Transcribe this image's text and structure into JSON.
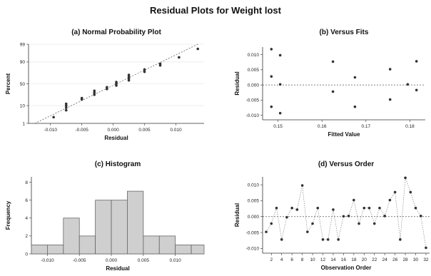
{
  "figure_title": "Residual Plots for Weight lost",
  "chart_data": [
    {
      "id": "a",
      "type": "scatter",
      "title": "(a) Normal Probability Plot",
      "xlabel": "Residual",
      "ylabel": "Percent",
      "x_ticks": [
        "-0.010",
        "-0.005",
        "0.000",
        "0.005",
        "0.010"
      ],
      "x_tick_values": [
        -0.01,
        -0.005,
        0.0,
        0.005,
        0.01
      ],
      "y_ticks": [
        "1",
        "10",
        "50",
        "90",
        "99"
      ],
      "y_tick_values": [
        1,
        10,
        50,
        90,
        99
      ],
      "xlim": [
        -0.0135,
        0.0145
      ],
      "ylim": [
        1,
        99
      ],
      "scale_y": "normal-probability",
      "reference_line": [
        [
          -0.0125,
          1
        ],
        [
          0.0135,
          99
        ]
      ],
      "points": [
        [
          -0.0095,
          2.5
        ],
        [
          -0.0075,
          6
        ],
        [
          -0.0075,
          8
        ],
        [
          -0.0075,
          10
        ],
        [
          -0.0075,
          12
        ],
        [
          -0.005,
          18
        ],
        [
          -0.005,
          20
        ],
        [
          -0.003,
          26
        ],
        [
          -0.003,
          30
        ],
        [
          -0.003,
          34
        ],
        [
          -0.001,
          38
        ],
        [
          -0.001,
          42
        ],
        [
          0.0005,
          46
        ],
        [
          0.0005,
          50
        ],
        [
          0.0005,
          54
        ],
        [
          0.0025,
          58
        ],
        [
          0.0025,
          62
        ],
        [
          0.0025,
          66
        ],
        [
          0.0025,
          70
        ],
        [
          0.005,
          76
        ],
        [
          0.005,
          80
        ],
        [
          0.0075,
          86
        ],
        [
          0.0075,
          88
        ],
        [
          0.0105,
          94
        ],
        [
          0.0135,
          98
        ]
      ]
    },
    {
      "id": "b",
      "type": "scatter",
      "title": "(b) Versus Fits",
      "xlabel": "Fitted Value",
      "ylabel": "Residual",
      "x_ticks": [
        "0.15",
        "0.16",
        "0.17",
        "0.18"
      ],
      "x_tick_values": [
        0.15,
        0.16,
        0.17,
        0.18
      ],
      "y_ticks": [
        "-0.010",
        "-0.005",
        "0.000",
        "0.005",
        "0.010"
      ],
      "y_tick_values": [
        -0.01,
        -0.005,
        0.0,
        0.005,
        0.01
      ],
      "xlim": [
        0.1465,
        0.1835
      ],
      "ylim": [
        -0.0115,
        0.0125
      ],
      "reference_y": 0,
      "points": [
        [
          0.1485,
          0.0118
        ],
        [
          0.1485,
          0.0028
        ],
        [
          0.1485,
          -0.0072
        ],
        [
          0.1505,
          0.0098
        ],
        [
          0.1505,
          0.0002
        ],
        [
          0.1505,
          -0.0093
        ],
        [
          0.1625,
          0.0077
        ],
        [
          0.1625,
          -0.0022
        ],
        [
          0.1675,
          0.0025
        ],
        [
          0.1675,
          -0.0072
        ],
        [
          0.1755,
          0.0052
        ],
        [
          0.1755,
          -0.0048
        ],
        [
          0.1795,
          0.0002
        ],
        [
          0.1815,
          0.0078
        ],
        [
          0.1815,
          -0.0017
        ]
      ]
    },
    {
      "id": "c",
      "type": "bar",
      "title": "(c) Histogram",
      "xlabel": "Residual",
      "ylabel": "Frequency",
      "x_ticks": [
        "-0.010",
        "-0.005",
        "0.000",
        "0.005",
        "0.010"
      ],
      "x_tick_values": [
        -0.01,
        -0.005,
        0.0,
        0.005,
        0.01
      ],
      "y_ticks": [
        "0",
        "2",
        "4",
        "6",
        "8"
      ],
      "y_tick_values": [
        0,
        2,
        4,
        6,
        8
      ],
      "xlim": [
        -0.0125,
        0.0145
      ],
      "ylim": [
        0,
        8.6
      ],
      "bin_edges": [
        -0.0125,
        -0.01,
        -0.0075,
        -0.005,
        -0.0025,
        0.0,
        0.0025,
        0.005,
        0.0075,
        0.01,
        0.0125,
        0.0145
      ],
      "values": [
        1,
        1,
        4,
        2,
        6,
        6,
        7,
        2,
        2,
        1,
        1
      ]
    },
    {
      "id": "d",
      "type": "line",
      "title": "(d) Versus Order",
      "xlabel": "Observation Order",
      "ylabel": "Residual",
      "x_ticks": [
        "2",
        "4",
        "6",
        "8",
        "10",
        "12",
        "14",
        "16",
        "18",
        "20",
        "22",
        "24",
        "26",
        "28",
        "30",
        "32"
      ],
      "x_tick_values": [
        2,
        4,
        6,
        8,
        10,
        12,
        14,
        16,
        18,
        20,
        22,
        24,
        26,
        28,
        30,
        32
      ],
      "y_ticks": [
        "-0.010",
        "-0.005",
        "0.000",
        "0.005",
        "0.010"
      ],
      "y_tick_values": [
        -0.01,
        -0.005,
        0.0,
        0.005,
        0.01
      ],
      "xlim": [
        0.3,
        32.7
      ],
      "ylim": [
        -0.0115,
        0.0125
      ],
      "reference_y": 0,
      "x": [
        1,
        2,
        3,
        4,
        5,
        6,
        7,
        8,
        9,
        10,
        11,
        12,
        13,
        14,
        15,
        16,
        17,
        18,
        19,
        20,
        21,
        22,
        23,
        24,
        25,
        26,
        27,
        28,
        29,
        30,
        31,
        32
      ],
      "values": [
        -0.0048,
        -0.0022,
        0.0027,
        -0.0072,
        -0.0002,
        0.0027,
        0.0022,
        0.0098,
        -0.0048,
        -0.0022,
        0.0027,
        -0.0072,
        -0.0072,
        0.0022,
        -0.0072,
        0.0001,
        0.0002,
        0.0052,
        -0.0022,
        0.0027,
        0.0027,
        -0.0022,
        0.0027,
        0.0002,
        0.0052,
        0.0077,
        -0.0072,
        0.0122,
        0.0077,
        0.0027,
        0.0002,
        -0.0098
      ]
    }
  ]
}
